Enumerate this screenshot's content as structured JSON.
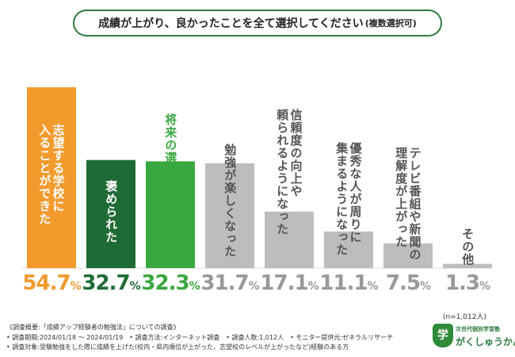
{
  "chart_data": {
    "type": "bar",
    "title": "成績が上がり、良かったことを全て選択してください",
    "title_suffix": "(複数選択可)",
    "categories": [
      "志望する学校に\n入ることができた",
      "褒められた",
      "将来の選択肢が広がった",
      "勉強が楽しくなった",
      "信頼度の向上や\n頼られるようになった",
      "優秀な人が周りに\n集まるようになった",
      "テレビ番組や新聞の\n理解度が上がった",
      "その他"
    ],
    "values": [
      54.7,
      32.7,
      32.3,
      31.7,
      17.1,
      11.1,
      7.5,
      1.3
    ],
    "value_labels": [
      "54.7",
      "32.7",
      "32.3",
      "31.7",
      "17.1",
      "11.1",
      "7.5",
      "1.3"
    ],
    "unit": "%",
    "ylim": [
      0,
      56
    ],
    "sample_size": "(n=1,012人)",
    "colors": {
      "bars": [
        "#f39a2d",
        "#1f6b35",
        "#3aa840",
        "#bdbdbd",
        "#bdbdbd",
        "#bdbdbd",
        "#bdbdbd",
        "#bdbdbd"
      ],
      "label_text": [
        "#ffffff",
        "#ffffff",
        "#3aa840",
        "#555555",
        "#555555",
        "#555555",
        "#555555",
        "#555555"
      ],
      "pct_text": [
        "#f39a2d",
        "#1f6b35",
        "#3aa840",
        "#999999",
        "#999999",
        "#999999",
        "#999999",
        "#999999"
      ],
      "title_border": "#2f7a3e"
    }
  },
  "notes": [
    "《調査概要:「成績アップ経験者の勉強法」についての調査》",
    "• 調査期間:2024/01/18 〜 2024/01/19　• 調査方法:インターネット調査　• 調査人数:1,012人　• モニター提供元:ゼネラルリサーチ",
    "• 調査対象:受験勉強をした際に成績を上げた(校内・県内順位が上がった、志望校のレベルが上がったなど)経験のある方"
  ],
  "logo": {
    "mark": "学",
    "tagline": "次世代個別学習塾",
    "name": "がくしゅうかん"
  }
}
